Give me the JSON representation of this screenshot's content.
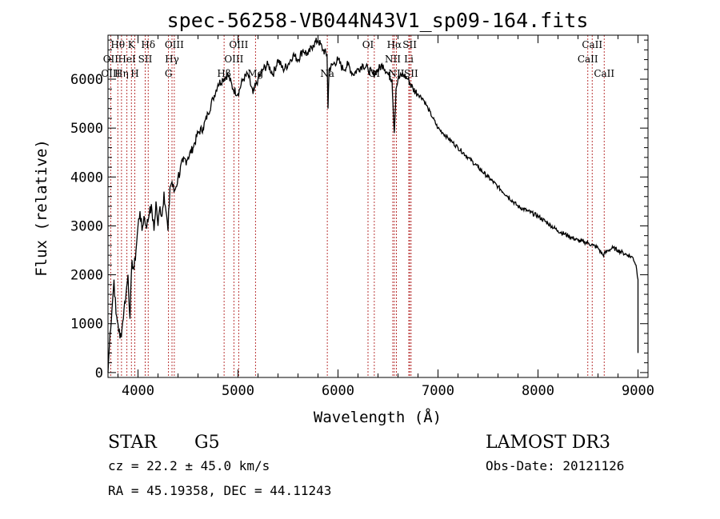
{
  "chart_data": {
    "type": "line",
    "title": "spec-56258-VB044N43V1_sp09-164.fits",
    "xlabel": "Wavelength (Å)",
    "ylabel": "Flux (relative)",
    "xlim": [
      3700,
      9100
    ],
    "ylim": [
      -100,
      6900
    ],
    "xticks": [
      4000,
      5000,
      6000,
      7000,
      8000,
      9000
    ],
    "yticks": [
      0,
      1000,
      2000,
      3000,
      4000,
      5000,
      6000
    ],
    "xtick_labels": [
      "4000",
      "5000",
      "6000",
      "7000",
      "8000",
      "9000"
    ],
    "ytick_labels": [
      "0",
      "1000",
      "2000",
      "3000",
      "4000",
      "5000",
      "6000"
    ],
    "series": [
      {
        "name": "spectrum",
        "x": [
          3700,
          3720,
          3740,
          3760,
          3780,
          3800,
          3820,
          3840,
          3860,
          3880,
          3900,
          3920,
          3940,
          3960,
          3980,
          4000,
          4020,
          4040,
          4060,
          4080,
          4100,
          4120,
          4140,
          4160,
          4180,
          4200,
          4220,
          4240,
          4260,
          4280,
          4300,
          4320,
          4340,
          4360,
          4380,
          4400,
          4450,
          4500,
          4550,
          4600,
          4650,
          4700,
          4750,
          4800,
          4850,
          4900,
          4950,
          5000,
          5050,
          5100,
          5150,
          5200,
          5250,
          5300,
          5350,
          5400,
          5450,
          5500,
          5550,
          5600,
          5650,
          5700,
          5750,
          5800,
          5850,
          5890,
          5900,
          5910,
          5950,
          6000,
          6050,
          6100,
          6150,
          6200,
          6250,
          6300,
          6350,
          6400,
          6450,
          6500,
          6540,
          6563,
          6580,
          6600,
          6650,
          6700,
          6750,
          6800,
          6850,
          6900,
          6950,
          7000,
          7050,
          7100,
          7150,
          7200,
          7300,
          7400,
          7500,
          7600,
          7700,
          7800,
          7900,
          8000,
          8100,
          8200,
          8300,
          8400,
          8500,
          8550,
          8600,
          8650,
          8700,
          8750,
          8800,
          8850,
          8900,
          8950,
          8980,
          9000
        ],
        "values": [
          0,
          800,
          1300,
          1900,
          1200,
          1000,
          700,
          900,
          1300,
          1600,
          2000,
          1100,
          2300,
          2100,
          2500,
          3000,
          3300,
          2900,
          3200,
          3000,
          3100,
          3400,
          3300,
          2900,
          3500,
          3000,
          3400,
          3200,
          3700,
          3300,
          2900,
          3800,
          3900,
          3700,
          3800,
          4000,
          4300,
          4400,
          4600,
          4900,
          5000,
          5300,
          5600,
          5900,
          6000,
          6100,
          5800,
          5700,
          6000,
          6100,
          5700,
          6000,
          6200,
          6300,
          6100,
          6400,
          6200,
          6300,
          6500,
          6400,
          6600,
          6500,
          6700,
          6800,
          6600,
          6500,
          5400,
          6200,
          6300,
          6400,
          6200,
          6300,
          6100,
          6200,
          6300,
          6200,
          6100,
          6200,
          6300,
          6100,
          6000,
          4900,
          5800,
          6000,
          6100,
          6000,
          5800,
          5700,
          5600,
          5400,
          5200,
          5000,
          4900,
          4800,
          4700,
          4600,
          4400,
          4200,
          4000,
          3800,
          3600,
          3400,
          3300,
          3200,
          3050,
          2900,
          2800,
          2700,
          2650,
          2600,
          2550,
          2400,
          2500,
          2550,
          2500,
          2450,
          2400,
          2350,
          2200,
          1900
        ]
      }
    ],
    "lines": [
      {
        "label": "Hθ",
        "wavelength": 3798,
        "row": 0
      },
      {
        "label": "K",
        "wavelength": 3934,
        "row": 0
      },
      {
        "label": "Hδ",
        "wavelength": 4102,
        "row": 0
      },
      {
        "label": "OIII",
        "wavelength": 4363,
        "row": 0
      },
      {
        "label": "OIII",
        "wavelength": 5007,
        "row": 0
      },
      {
        "label": "OI",
        "wavelength": 6300,
        "row": 0
      },
      {
        "label": "Hα",
        "wavelength": 6563,
        "row": 0
      },
      {
        "label": "SII",
        "wavelength": 6717,
        "row": 0
      },
      {
        "label": "CaII",
        "wavelength": 8542,
        "row": 0
      },
      {
        "label": "OII",
        "wavelength": 3727,
        "row": 1
      },
      {
        "label": "HeI",
        "wavelength": 3889,
        "row": 1
      },
      {
        "label": "SII",
        "wavelength": 4072,
        "row": 1
      },
      {
        "label": "Hγ",
        "wavelength": 4340,
        "row": 1
      },
      {
        "label": "OIII",
        "wavelength": 4959,
        "row": 1
      },
      {
        "label": "NII",
        "wavelength": 6548,
        "row": 1
      },
      {
        "label": "Li",
        "wavelength": 6708,
        "row": 1
      },
      {
        "label": "CaII",
        "wavelength": 8498,
        "row": 1
      },
      {
        "label": "OIII",
        "wavelength": 3727,
        "row": 2
      },
      {
        "label": "Hη",
        "wavelength": 3835,
        "row": 2
      },
      {
        "label": "H",
        "wavelength": 3968,
        "row": 2
      },
      {
        "label": "G",
        "wavelength": 4305,
        "row": 2
      },
      {
        "label": "Hβ",
        "wavelength": 4861,
        "row": 2
      },
      {
        "label": "Mg",
        "wavelength": 5175,
        "row": 2
      },
      {
        "label": "Na",
        "wavelength": 5893,
        "row": 2
      },
      {
        "label": "OI",
        "wavelength": 6363,
        "row": 2
      },
      {
        "label": "NII",
        "wavelength": 6584,
        "row": 2
      },
      {
        "label": "SII",
        "wavelength": 6731,
        "row": 2
      },
      {
        "label": "CaII",
        "wavelength": 8662,
        "row": 2
      }
    ],
    "grid": false,
    "legend": "none"
  },
  "info": {
    "class_label": "STAR",
    "subclass": "G5",
    "survey": "LAMOST DR3",
    "cz": "cz = 22.2 ± 45.0 km/s",
    "obs_date": "Obs-Date: 20121126",
    "coords": "RA =  45.19358, DEC =  44.11243"
  },
  "colors": {
    "spectrum": "#000000",
    "line_marker": "#b22222"
  }
}
